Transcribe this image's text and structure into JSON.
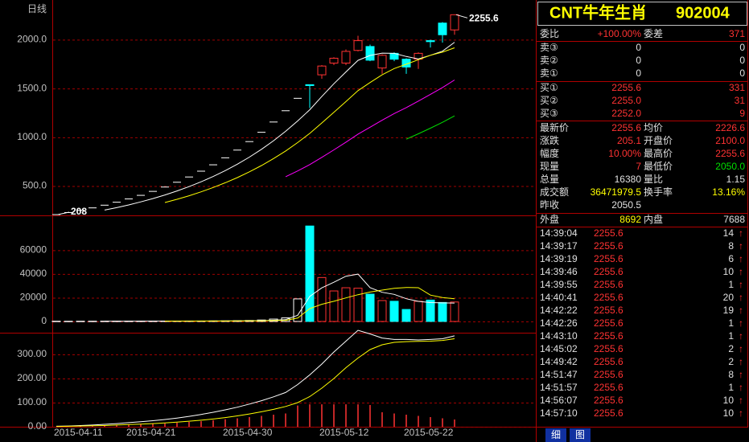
{
  "chart_data": [
    {
      "type": "candlestick",
      "title": "日线",
      "open": [
        208,
        228.8,
        251.7,
        276.8,
        304.5,
        335,
        368.5,
        405.3,
        445.9,
        490.4,
        539.5,
        593.4,
        652.8,
        718.1,
        789.9,
        868.9,
        955.8,
        1051.3,
        1156.5,
        1272.1,
        1399.3,
        1539,
        1640,
        1760,
        1760,
        1890,
        1930,
        1710,
        1860,
        1800,
        1800,
        1990,
        2170,
        2100
      ],
      "high": [
        208,
        228.8,
        251.7,
        276.8,
        304.5,
        335,
        368.5,
        405.3,
        445.9,
        490.4,
        539.5,
        593.4,
        652.8,
        718.1,
        789.9,
        868.9,
        955.8,
        1051.3,
        1156.5,
        1272.1,
        1399.3,
        1539,
        1740,
        1820,
        1900,
        2040,
        1950,
        1850,
        1870,
        1810,
        1870,
        2000,
        2180,
        2255.6
      ],
      "low": [
        208,
        228.8,
        251.7,
        276.8,
        304.5,
        335,
        368.5,
        405.3,
        445.9,
        490.4,
        539.5,
        593.4,
        652.8,
        718.1,
        789.9,
        868.9,
        955.8,
        1051.3,
        1156.5,
        1272.1,
        1399.3,
        1300,
        1600,
        1740,
        1740,
        1880,
        1780,
        1650,
        1780,
        1650,
        1700,
        1920,
        1970,
        2050
      ],
      "close": [
        208,
        228.8,
        251.7,
        276.8,
        304.5,
        335,
        368.5,
        405.3,
        445.9,
        490.4,
        539.5,
        593.4,
        652.8,
        718.1,
        789.9,
        868.9,
        955.8,
        1051.3,
        1156.5,
        1272.1,
        1399.3,
        1530,
        1730,
        1810,
        1880,
        1990,
        1790,
        1840,
        1800,
        1720,
        1860,
        1980,
        2050.5,
        2255.6
      ],
      "ylim": [
        200,
        2390
      ],
      "yticks": [
        {
          "value": 500,
          "label": "500.0"
        },
        {
          "value": 1000,
          "label": "1000.0"
        },
        {
          "value": 1500,
          "label": "1500.0"
        },
        {
          "value": 2000,
          "label": "2000.0"
        }
      ],
      "grid": true,
      "up_color": "#ff3232",
      "down_color": "#00ffff",
      "flat_color": "#ffffff",
      "high_mark": 2255.6,
      "low_mark": 208,
      "series": [
        {
          "color": "#ffffff",
          "values": [
            null,
            null,
            null,
            null,
            254,
            279.4,
            307.3,
            338,
            371.8,
            409,
            449.9,
            494.9,
            544.4,
            598.8,
            658.7,
            724.6,
            797.1,
            876.8,
            964.5,
            1060.9,
            1167,
            1281.8,
            1417.6,
            1548.3,
            1669.9,
            1788,
            1838.2,
            1862,
            1860,
            1828,
            1802,
            1840,
            1882.1,
            1973.2
          ]
        },
        {
          "color": "#ffff00",
          "values": [
            null,
            null,
            null,
            null,
            null,
            null,
            null,
            null,
            null,
            331.5,
            364.6,
            401.1,
            441.2,
            485.3,
            533.9,
            587.3,
            646,
            710.6,
            781.7,
            859.8,
            945.8,
            1039.5,
            1147.2,
            1256.4,
            1365.4,
            1477.5,
            1560.9,
            1639.8,
            1704.1,
            1748.9,
            1795,
            1840,
            1872.1,
            1916.6
          ]
        },
        {
          "color": "#ff00ff",
          "values": [
            null,
            null,
            null,
            null,
            null,
            null,
            null,
            null,
            null,
            null,
            null,
            null,
            null,
            null,
            null,
            null,
            null,
            null,
            null,
            595.7,
            655.2,
            720.3,
            794.3,
            870.9,
            949.7,
            1032.4,
            1103.5,
            1175.2,
            1243,
            1304.4,
            1370.5,
            1440.2,
            1510.1,
            1586.9
          ]
        },
        {
          "color": "#00e000",
          "values": [
            null,
            null,
            null,
            null,
            null,
            null,
            null,
            null,
            null,
            null,
            null,
            null,
            null,
            null,
            null,
            null,
            null,
            null,
            null,
            null,
            null,
            null,
            null,
            null,
            null,
            null,
            null,
            null,
            null,
            980.4,
            1035.5,
            1093.5,
            1153.5,
            1219.4
          ]
        }
      ]
    },
    {
      "type": "volume",
      "values": [
        200,
        150,
        180,
        200,
        220,
        250,
        260,
        280,
        300,
        320,
        350,
        380,
        400,
        450,
        500,
        600,
        800,
        1200,
        2000,
        3000,
        19000,
        80400,
        37000,
        25700,
        28400,
        28000,
        23000,
        17600,
        17000,
        10100,
        17000,
        18000,
        16000,
        16380
      ],
      "ylim": [
        0,
        88000
      ],
      "yticks": [
        0,
        20000,
        40000,
        60000
      ],
      "grid": true,
      "series": [
        {
          "color": "#ffffff",
          "values": [
            null,
            null,
            null,
            null,
            190,
            200,
            222,
            242,
            262,
            282,
            302,
            326,
            350,
            380,
            416,
            466,
            550,
            710,
            1020,
            1520,
            5200,
            21120,
            28280,
            33020,
            38100,
            39900,
            28420,
            24540,
            22800,
            19140,
            16940,
            15940,
            15620,
            15496
          ]
        },
        {
          "color": "#ffff00",
          "values": [
            null,
            null,
            null,
            null,
            null,
            null,
            null,
            null,
            null,
            250,
            270,
            290,
            313,
            338,
            366,
            401,
            458,
            560,
            726,
            960,
            2833,
            10835,
            14495,
            17020,
            19810,
            22550,
            24770,
            26410,
            27910,
            28620,
            28420,
            22180,
            20080,
            19148
          ]
        }
      ]
    },
    {
      "type": "bar-line",
      "categories": [
        "2015-04-11",
        null,
        null,
        null,
        null,
        null,
        "2015-04-21",
        null,
        null,
        null,
        null,
        null,
        null,
        null,
        "2015-04-30",
        null,
        null,
        null,
        null,
        null,
        null,
        null,
        "2015-05-12",
        null,
        null,
        null,
        null,
        null,
        null,
        "2015-05-22",
        null,
        null,
        null,
        null
      ],
      "values": [
        0,
        1,
        2,
        3,
        4,
        6,
        8,
        10,
        12,
        14,
        17,
        20,
        23,
        27,
        31,
        35,
        40,
        45,
        50,
        55,
        88,
        93,
        93,
        93,
        93,
        93,
        90,
        60,
        55,
        50,
        45,
        40,
        35,
        30
      ],
      "color": "#ff3232",
      "ylim": [
        0,
        390
      ],
      "yticks": [
        {
          "value": 0,
          "label": "0.00"
        },
        {
          "value": 100,
          "label": "100.00"
        },
        {
          "value": 200,
          "label": "200.00"
        },
        {
          "value": 300,
          "label": "300.00"
        }
      ],
      "grid": true,
      "series": [
        {
          "color": "#ffffff",
          "values": [
            2,
            3,
            5,
            7,
            10,
            13,
            17,
            21,
            25,
            30,
            36,
            43,
            51,
            60,
            70,
            81,
            94,
            108,
            124,
            142,
            175,
            215,
            260,
            310,
            355,
            400,
            385,
            368,
            362,
            362,
            360,
            362,
            365,
            377
          ]
        },
        {
          "color": "#ffff00",
          "values": [
            1,
            2,
            3,
            4,
            5,
            7,
            9,
            11,
            13,
            16,
            19,
            23,
            27,
            32,
            38,
            45,
            53,
            62,
            72,
            84,
            100,
            125,
            160,
            200,
            245,
            285,
            320,
            340,
            350,
            353,
            354,
            355,
            358,
            365
          ]
        }
      ]
    }
  ],
  "quote": {
    "title": "CNT牛年生肖",
    "code": "902004",
    "order_ratio": [
      "委比",
      "+100.00%",
      "委差",
      "371"
    ],
    "asks": [
      [
        "卖③",
        "0",
        "0"
      ],
      [
        "卖②",
        "0",
        "0"
      ],
      [
        "卖①",
        "0",
        "0"
      ]
    ],
    "bids": [
      [
        "买①",
        "2255.6",
        "331"
      ],
      [
        "买②",
        "2255.0",
        "31"
      ],
      [
        "买③",
        "2252.0",
        "9"
      ]
    ],
    "stats": [
      [
        "最新价",
        "2255.6",
        "均价",
        "2226.6"
      ],
      [
        "涨跌",
        "205.1",
        "开盘价",
        "2100.0"
      ],
      [
        "幅度",
        "10.00%",
        "最高价",
        "2255.6"
      ],
      [
        "现量",
        "7",
        "最低价",
        "2050.0"
      ],
      [
        "总量",
        "16380",
        "量比",
        "1.15"
      ],
      [
        "成交额",
        "36471979.5",
        "换手率",
        "13.16%"
      ],
      [
        "昨收",
        "2050.5"
      ]
    ],
    "flow": [
      "外盘",
      "8692",
      "内盘",
      "7688"
    ],
    "trades": [
      [
        "14:39:04",
        "2255.6",
        "14",
        "↑"
      ],
      [
        "14:39:17",
        "2255.6",
        "8",
        "↑"
      ],
      [
        "14:39:19",
        "2255.6",
        "6",
        "↑"
      ],
      [
        "14:39:46",
        "2255.6",
        "10",
        "↑"
      ],
      [
        "14:39:55",
        "2255.6",
        "1",
        "↑"
      ],
      [
        "14:40:41",
        "2255.6",
        "20",
        "↑"
      ],
      [
        "14:42:22",
        "2255.6",
        "19",
        "↑"
      ],
      [
        "14:42:26",
        "2255.6",
        "1",
        "↑"
      ],
      [
        "14:43:10",
        "2255.6",
        "1",
        "↑"
      ],
      [
        "14:45:02",
        "2255.6",
        "2",
        "↑"
      ],
      [
        "14:49:42",
        "2255.6",
        "2",
        "↑"
      ],
      [
        "14:51:47",
        "2255.6",
        "8",
        "↑"
      ],
      [
        "14:51:57",
        "2255.6",
        "1",
        "↑"
      ],
      [
        "14:56:07",
        "2255.6",
        "10",
        "↑"
      ],
      [
        "14:57:10",
        "2255.6",
        "10",
        "↑"
      ]
    ],
    "tabs": [
      "细",
      "图"
    ]
  }
}
